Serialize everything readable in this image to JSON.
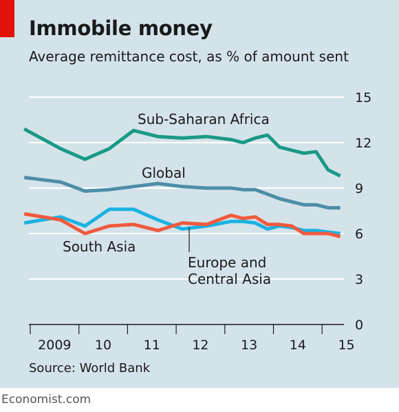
{
  "header": {
    "title": "Immobile money",
    "subtitle": "Average remittance cost, as % of amount sent"
  },
  "source": "Source: World Bank",
  "footer": "Economist.com",
  "colors": {
    "background": "#d4e3ea",
    "accent": "#e3120b",
    "gridline": "#ffffff"
  },
  "chart_data": {
    "type": "line",
    "title": "Immobile money",
    "subtitle": "Average remittance cost, as % of amount sent",
    "xlabel": "",
    "ylabel": "",
    "ylim": [
      0,
      15
    ],
    "yticks": [
      "0",
      "3",
      "6",
      "9",
      "12",
      "15"
    ],
    "y_axis_side": "right",
    "grid": true,
    "x_tick_labels": [
      "2009",
      "10",
      "11",
      "12",
      "13",
      "14",
      "15"
    ],
    "series": [
      {
        "name": "Sub-Saharan Africa",
        "color": "#1a9a85",
        "x": [
          "2008-Q4",
          "2009-Q3",
          "2010-Q1",
          "2010-Q3",
          "2011-Q1",
          "2011-Q3",
          "2012-Q1",
          "2012-Q3",
          "2013-Q1",
          "2013-Q2",
          "2013-Q3",
          "2013-Q4",
          "2014-Q1",
          "2014-Q2",
          "2014-Q3",
          "2014-Q4",
          "2015-Q1",
          "2015-Q2"
        ],
        "values": [
          12.9,
          11.6,
          10.9,
          11.6,
          12.8,
          12.4,
          12.3,
          12.4,
          12.2,
          12.0,
          12.3,
          12.5,
          11.7,
          11.5,
          11.3,
          11.4,
          10.2,
          9.8
        ]
      },
      {
        "name": "Global",
        "color": "#4d8ea8",
        "x": [
          "2008-Q4",
          "2009-Q3",
          "2010-Q1",
          "2010-Q3",
          "2011-Q1",
          "2011-Q3",
          "2012-Q1",
          "2012-Q3",
          "2013-Q1",
          "2013-Q2",
          "2013-Q3",
          "2013-Q4",
          "2014-Q1",
          "2014-Q2",
          "2014-Q3",
          "2014-Q4",
          "2015-Q1",
          "2015-Q2"
        ],
        "values": [
          9.7,
          9.4,
          8.8,
          8.9,
          9.1,
          9.3,
          9.1,
          9.0,
          9.0,
          8.9,
          8.9,
          8.6,
          8.3,
          8.1,
          7.9,
          7.9,
          7.7,
          7.7
        ]
      },
      {
        "name": "South Asia",
        "color": "#1ab2e0",
        "x": [
          "2008-Q4",
          "2009-Q3",
          "2010-Q1",
          "2010-Q3",
          "2011-Q1",
          "2011-Q3",
          "2012-Q1",
          "2012-Q3",
          "2013-Q1",
          "2013-Q2",
          "2013-Q3",
          "2013-Q4",
          "2014-Q1",
          "2014-Q2",
          "2014-Q3",
          "2014-Q4",
          "2015-Q1",
          "2015-Q2"
        ],
        "values": [
          6.7,
          7.1,
          6.5,
          7.6,
          7.6,
          6.9,
          6.3,
          6.5,
          6.8,
          6.8,
          6.7,
          6.3,
          6.5,
          6.4,
          6.2,
          6.2,
          6.1,
          6.0
        ]
      },
      {
        "name": "Europe and Central Asia",
        "color": "#f05a3c",
        "x": [
          "2008-Q4",
          "2009-Q3",
          "2010-Q1",
          "2010-Q3",
          "2011-Q1",
          "2011-Q3",
          "2012-Q1",
          "2012-Q3",
          "2013-Q1",
          "2013-Q2",
          "2013-Q3",
          "2013-Q4",
          "2014-Q1",
          "2014-Q2",
          "2014-Q3",
          "2014-Q4",
          "2015-Q1",
          "2015-Q2"
        ],
        "values": [
          7.3,
          6.9,
          6.0,
          6.5,
          6.6,
          6.2,
          6.7,
          6.6,
          7.2,
          7.0,
          7.1,
          6.6,
          6.6,
          6.5,
          6.0,
          6.0,
          6.0,
          5.8
        ]
      }
    ],
    "annotations": [
      "Sub-Saharan Africa",
      "Global",
      "South Asia",
      "Europe and",
      "Central Asia"
    ]
  }
}
